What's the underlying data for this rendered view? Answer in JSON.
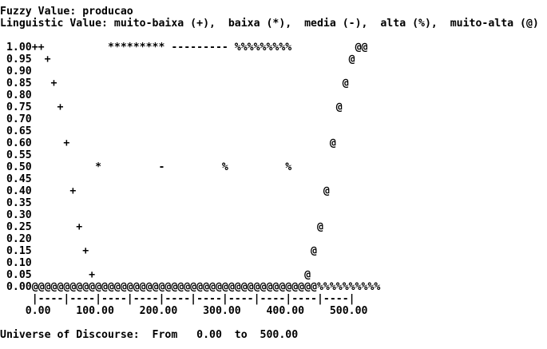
{
  "terminal": {
    "background": "#ffffff",
    "foreground": "#000000",
    "lines": [
      "Fuzzy Value: producao",
      "Linguistic Value: muito-baixa (+),  baixa (*),  media (-),  alta (%),  muito-alta (@)",
      "",
      " 1.00++          ********* --------- %%%%%%%%%          @@",
      " 0.95  +                                               @",
      " 0.90",
      " 0.85   +                                             @",
      " 0.80",
      " 0.75    +                                           @",
      " 0.70",
      " 0.65",
      " 0.60     +                                         @",
      " 0.55",
      " 0.50          *         -         %         %",
      " 0.45",
      " 0.40      +                                       @",
      " 0.35",
      " 0.30",
      " 0.25       +                                     @",
      " 0.20",
      " 0.15        +                                   @",
      " 0.10",
      " 0.05         +                                 @",
      " 0.00@@@@@@@@@@@@@@@@@@@@@@@@@@@@@@@@@@@@@@@@@@@@@%%%%%%%%%%",
      "     |----|----|----|----|----|----|----|----|----|----|",
      "    0.00    100.00    200.00    300.00    400.00    500.00",
      "",
      "Universe of Discourse:  From   0.00  to  500.00"
    ]
  }
}
